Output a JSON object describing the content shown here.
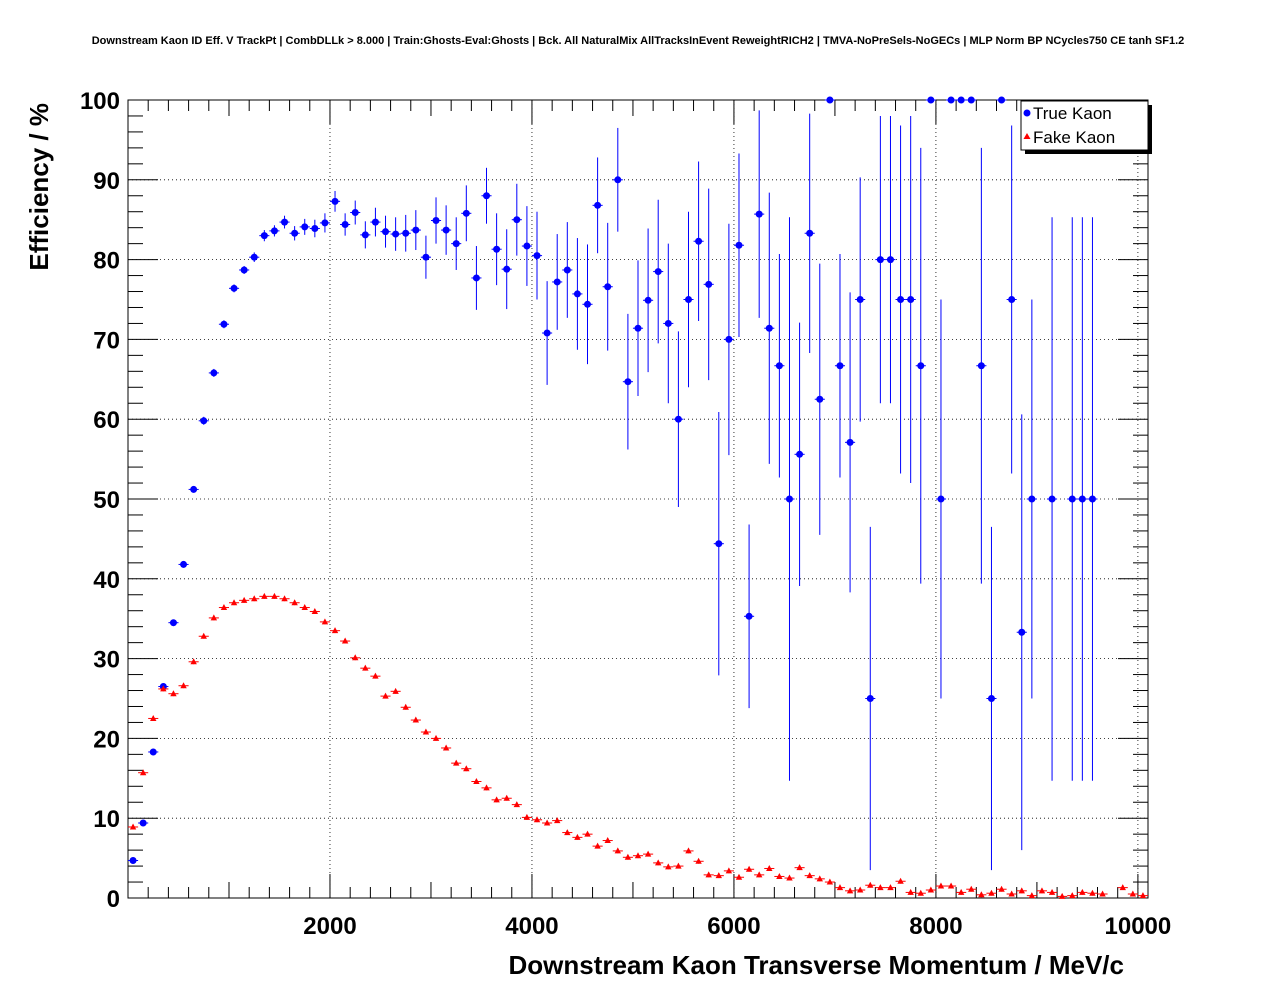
{
  "chart_data": {
    "type": "scatter",
    "title": "Downstream Kaon ID Eff. V TrackPt | CombDLLk > 8.000 | Train:Ghosts-Eval:Ghosts | Bck. All NaturalMix AllTracksInEvent ReweightRICH2 | TMVA-NoPreSels-NoGECs | MLP Norm BP NCycles750 CE tanh SF1.2",
    "xlabel": "Downstream Kaon Transverse Momentum / MeV/c",
    "ylabel": "Efficiency / %",
    "xlim": [
      0,
      10100
    ],
    "ylim": [
      0,
      100
    ],
    "x_ticks": [
      2000,
      4000,
      6000,
      8000,
      10000
    ],
    "y_ticks": [
      0,
      10,
      20,
      30,
      40,
      50,
      60,
      70,
      80,
      90,
      100
    ],
    "grid": true,
    "legend_position": "top-right",
    "series": [
      {
        "name": "True Kaon",
        "color": "#0000ff",
        "marker": "circle",
        "points": [
          [
            50,
            4.7,
            0.4
          ],
          [
            150,
            9.4,
            0.4
          ],
          [
            250,
            18.3,
            0.4
          ],
          [
            350,
            26.5,
            0.4
          ],
          [
            450,
            34.5,
            0.4
          ],
          [
            550,
            41.8,
            0.4
          ],
          [
            650,
            51.2,
            0.4
          ],
          [
            750,
            59.8,
            0.5
          ],
          [
            850,
            65.8,
            0.5
          ],
          [
            950,
            71.9,
            0.5
          ],
          [
            1050,
            76.4,
            0.5
          ],
          [
            1150,
            78.7,
            0.5
          ],
          [
            1250,
            80.3,
            0.6
          ],
          [
            1350,
            83.0,
            0.7
          ],
          [
            1450,
            83.6,
            0.7
          ],
          [
            1550,
            84.7,
            0.8
          ],
          [
            1650,
            83.3,
            0.9
          ],
          [
            1750,
            84.1,
            1.0
          ],
          [
            1850,
            83.9,
            1.1
          ],
          [
            1950,
            84.6,
            1.2
          ],
          [
            2050,
            87.3,
            1.3
          ],
          [
            2150,
            84.4,
            1.4
          ],
          [
            2250,
            85.9,
            1.5
          ],
          [
            2350,
            83.1,
            1.7
          ],
          [
            2450,
            84.7,
            1.8
          ],
          [
            2550,
            83.5,
            2.0
          ],
          [
            2650,
            83.2,
            2.1
          ],
          [
            2750,
            83.3,
            2.3
          ],
          [
            2850,
            83.7,
            2.5
          ],
          [
            2950,
            80.3,
            2.7
          ],
          [
            3050,
            84.9,
            2.9
          ],
          [
            3150,
            83.7,
            3.1
          ],
          [
            3250,
            82.0,
            3.3
          ],
          [
            3350,
            85.8,
            3.5
          ],
          [
            3450,
            77.7,
            4.0
          ],
          [
            3550,
            88.0,
            3.5
          ],
          [
            3650,
            81.3,
            4.5
          ],
          [
            3750,
            78.8,
            5.0
          ],
          [
            3850,
            85.0,
            4.5
          ],
          [
            3950,
            81.7,
            5.0
          ],
          [
            4050,
            80.5,
            5.5
          ],
          [
            4150,
            70.8,
            6.5
          ],
          [
            4250,
            77.2,
            6.0
          ],
          [
            4350,
            78.7,
            6.0
          ],
          [
            4450,
            75.7,
            7.0
          ],
          [
            4550,
            74.4,
            7.5
          ],
          [
            4650,
            86.8,
            6.0
          ],
          [
            4750,
            76.6,
            8.0
          ],
          [
            4850,
            90.0,
            6.5
          ],
          [
            4950,
            64.7,
            8.5
          ],
          [
            5050,
            71.4,
            8.5
          ],
          [
            5150,
            74.9,
            9.0
          ],
          [
            5250,
            78.5,
            9.0
          ],
          [
            5350,
            72.0,
            10.0
          ],
          [
            5450,
            60.0,
            11.0
          ],
          [
            5550,
            75.0,
            11.0
          ],
          [
            5650,
            82.3,
            10.0
          ],
          [
            5750,
            76.9,
            12.0
          ],
          [
            5850,
            44.4,
            16.5
          ],
          [
            5950,
            70.0,
            14.5
          ],
          [
            6050,
            81.8,
            11.5
          ],
          [
            6150,
            35.3,
            11.5
          ],
          [
            6250,
            85.7,
            13.0
          ],
          [
            6350,
            71.4,
            17.0
          ],
          [
            6450,
            66.7,
            14.0
          ],
          [
            6550,
            50.0,
            35.3
          ],
          [
            6650,
            55.6,
            16.5
          ],
          [
            6750,
            83.3,
            15.0
          ],
          [
            6850,
            62.5,
            17.0
          ],
          [
            6950,
            100.0,
            0.0
          ],
          [
            7050,
            66.7,
            14.0
          ],
          [
            7150,
            57.1,
            18.8
          ],
          [
            7250,
            75.0,
            15.3
          ],
          [
            7350,
            25.0,
            21.5
          ],
          [
            7450,
            80.0,
            18.0
          ],
          [
            7550,
            80.0,
            18.0
          ],
          [
            7650,
            75.0,
            21.8
          ],
          [
            7750,
            75.0,
            23.0
          ],
          [
            7850,
            66.7,
            27.3
          ],
          [
            7950,
            100.0,
            0.0
          ],
          [
            8050,
            50.0,
            25.0
          ],
          [
            8150,
            100.0,
            0.0
          ],
          [
            8250,
            100.0,
            0.0
          ],
          [
            8350,
            100.0,
            0.0
          ],
          [
            8450,
            66.7,
            27.3
          ],
          [
            8550,
            25.0,
            21.5
          ],
          [
            8650,
            100.0,
            0.0
          ],
          [
            8750,
            75.0,
            21.8
          ],
          [
            8850,
            33.3,
            27.3
          ],
          [
            8950,
            50.0,
            25.0
          ],
          [
            9150,
            50.0,
            35.3
          ],
          [
            9350,
            50.0,
            35.3
          ],
          [
            9450,
            50.0,
            35.3
          ],
          [
            9550,
            50.0,
            35.3
          ]
        ]
      },
      {
        "name": "Fake Kaon",
        "color": "#ff0000",
        "marker": "triangle",
        "points": [
          [
            50,
            8.9,
            0.3
          ],
          [
            150,
            15.7,
            0.3
          ],
          [
            250,
            22.5,
            0.3
          ],
          [
            350,
            26.2,
            0.3
          ],
          [
            450,
            25.6,
            0.3
          ],
          [
            550,
            26.6,
            0.3
          ],
          [
            650,
            29.6,
            0.3
          ],
          [
            750,
            32.8,
            0.3
          ],
          [
            850,
            35.1,
            0.3
          ],
          [
            950,
            36.4,
            0.3
          ],
          [
            1050,
            37.0,
            0.3
          ],
          [
            1150,
            37.3,
            0.3
          ],
          [
            1250,
            37.5,
            0.3
          ],
          [
            1350,
            37.8,
            0.3
          ],
          [
            1450,
            37.8,
            0.3
          ],
          [
            1550,
            37.5,
            0.3
          ],
          [
            1650,
            37.0,
            0.3
          ],
          [
            1750,
            36.4,
            0.3
          ],
          [
            1850,
            35.9,
            0.3
          ],
          [
            1950,
            34.6,
            0.3
          ],
          [
            2050,
            33.5,
            0.3
          ],
          [
            2150,
            32.2,
            0.3
          ],
          [
            2250,
            30.1,
            0.3
          ],
          [
            2350,
            28.8,
            0.3
          ],
          [
            2450,
            27.8,
            0.3
          ],
          [
            2550,
            25.3,
            0.3
          ],
          [
            2650,
            25.9,
            0.3
          ],
          [
            2750,
            23.9,
            0.3
          ],
          [
            2850,
            22.3,
            0.3
          ],
          [
            2950,
            20.8,
            0.3
          ],
          [
            3050,
            20.0,
            0.3
          ],
          [
            3150,
            18.8,
            0.3
          ],
          [
            3250,
            16.9,
            0.3
          ],
          [
            3350,
            16.2,
            0.3
          ],
          [
            3450,
            14.6,
            0.3
          ],
          [
            3550,
            13.8,
            0.3
          ],
          [
            3650,
            12.3,
            0.3
          ],
          [
            3750,
            12.5,
            0.3
          ],
          [
            3850,
            11.7,
            0.3
          ],
          [
            3950,
            10.1,
            0.3
          ],
          [
            4050,
            9.8,
            0.3
          ],
          [
            4150,
            9.4,
            0.3
          ],
          [
            4250,
            9.7,
            0.3
          ],
          [
            4350,
            8.2,
            0.3
          ],
          [
            4450,
            7.6,
            0.3
          ],
          [
            4550,
            8.0,
            0.3
          ],
          [
            4650,
            6.5,
            0.3
          ],
          [
            4750,
            7.2,
            0.3
          ],
          [
            4850,
            5.9,
            0.3
          ],
          [
            4950,
            5.1,
            0.3
          ],
          [
            5050,
            5.3,
            0.3
          ],
          [
            5150,
            5.5,
            0.3
          ],
          [
            5250,
            4.4,
            0.3
          ],
          [
            5350,
            3.9,
            0.3
          ],
          [
            5450,
            4.0,
            0.3
          ],
          [
            5550,
            5.9,
            0.3
          ],
          [
            5650,
            4.6,
            0.3
          ],
          [
            5750,
            2.9,
            0.3
          ],
          [
            5850,
            2.8,
            0.3
          ],
          [
            5950,
            3.4,
            0.3
          ],
          [
            6050,
            2.6,
            0.3
          ],
          [
            6150,
            3.6,
            0.3
          ],
          [
            6250,
            2.9,
            0.3
          ],
          [
            6350,
            3.7,
            0.3
          ],
          [
            6450,
            2.7,
            0.3
          ],
          [
            6550,
            2.5,
            0.3
          ],
          [
            6650,
            3.8,
            0.3
          ],
          [
            6750,
            2.8,
            0.3
          ],
          [
            6850,
            2.4,
            0.3
          ],
          [
            6950,
            2.0,
            0.3
          ],
          [
            7050,
            1.3,
            0.3
          ],
          [
            7150,
            0.9,
            0.3
          ],
          [
            7250,
            1.0,
            0.3
          ],
          [
            7350,
            1.6,
            0.3
          ],
          [
            7450,
            1.3,
            0.3
          ],
          [
            7550,
            1.3,
            0.3
          ],
          [
            7650,
            2.1,
            0.3
          ],
          [
            7750,
            0.7,
            0.3
          ],
          [
            7850,
            0.6,
            0.3
          ],
          [
            7950,
            1.0,
            0.3
          ],
          [
            8050,
            1.5,
            0.3
          ],
          [
            8150,
            1.5,
            0.3
          ],
          [
            8250,
            0.7,
            0.3
          ],
          [
            8350,
            1.1,
            0.3
          ],
          [
            8450,
            0.4,
            0.3
          ],
          [
            8550,
            0.6,
            0.3
          ],
          [
            8650,
            1.1,
            0.3
          ],
          [
            8750,
            0.5,
            0.3
          ],
          [
            8850,
            0.9,
            0.3
          ],
          [
            8950,
            0.3,
            0.3
          ],
          [
            9050,
            0.9,
            0.3
          ],
          [
            9150,
            0.7,
            0.3
          ],
          [
            9250,
            0.2,
            0.3
          ],
          [
            9350,
            0.3,
            0.3
          ],
          [
            9450,
            0.7,
            0.3
          ],
          [
            9550,
            0.6,
            0.3
          ],
          [
            9650,
            0.5,
            0.3
          ],
          [
            9850,
            1.3,
            0.3
          ],
          [
            9950,
            0.5,
            0.3
          ],
          [
            10050,
            0.3,
            0.3
          ]
        ]
      }
    ]
  }
}
